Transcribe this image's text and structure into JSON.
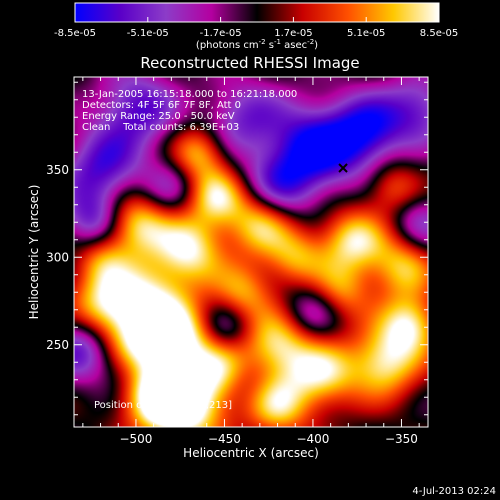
{
  "chart_data": {
    "type": "heatmap",
    "title": "Reconstructed RHESSI Image",
    "colorbar": {
      "ticks": [
        "-8.5e-05",
        "-5.1e-05",
        "-1.7e-05",
        "1.7e-05",
        "5.1e-05",
        "8.5e-05"
      ],
      "range": [
        -8.5e-05,
        8.5e-05
      ],
      "unit_label": "(photons cm",
      "unit_exp1": "-2",
      "unit_mid": " s",
      "unit_exp2": "-1",
      "unit_mid2": " asec",
      "unit_exp3": "-2",
      "unit_end": ")",
      "colormap": [
        "#0000ff",
        "#5a00c8",
        "#8c3cc8",
        "#b400a0",
        "#000000",
        "#c80000",
        "#ff5000",
        "#ffc800",
        "#ffffff"
      ]
    },
    "xlabel": "Heliocentric X (arcsec)",
    "ylabel": "Heliocentric Y (arcsec)",
    "xlim": [
      -535,
      -335
    ],
    "ylim": [
      203,
      403
    ],
    "xticks": [
      -500,
      -450,
      -400,
      -350
    ],
    "yticks": [
      250,
      300,
      350
    ],
    "annotations": {
      "time": "13-Jan-2005 16:15:18.000 to 16:21:18.000",
      "detectors": "Detectors: 4F 5F 6F 7F 8F, Att 0",
      "energy": "Energy Range: 25.0 - 50.0 keV",
      "clean": "Clean    Total counts: 6.39E+03",
      "position": "Position of Peak: [-471,213]"
    },
    "peak": {
      "x": -471,
      "y": 213
    },
    "minimum_marker": {
      "x": -383,
      "y": 351
    },
    "blobs": [
      {
        "x": -520,
        "y": 270,
        "v": 0.8,
        "s": 14
      },
      {
        "x": -495,
        "y": 277,
        "v": 0.8,
        "s": 16
      },
      {
        "x": -475,
        "y": 255,
        "v": 0.9,
        "s": 14
      },
      {
        "x": -500,
        "y": 248,
        "v": 0.7,
        "s": 13
      },
      {
        "x": -472,
        "y": 215,
        "v": 1.0,
        "s": 16
      },
      {
        "x": -490,
        "y": 222,
        "v": 0.85,
        "s": 14
      },
      {
        "x": -450,
        "y": 235,
        "v": 0.7,
        "s": 13
      },
      {
        "x": -420,
        "y": 250,
        "v": 0.8,
        "s": 14
      },
      {
        "x": -395,
        "y": 233,
        "v": 0.75,
        "s": 14
      },
      {
        "x": -360,
        "y": 240,
        "v": 0.85,
        "s": 14
      },
      {
        "x": -345,
        "y": 262,
        "v": 0.8,
        "s": 12
      },
      {
        "x": -350,
        "y": 295,
        "v": 0.7,
        "s": 13
      },
      {
        "x": -378,
        "y": 310,
        "v": 0.8,
        "s": 13
      },
      {
        "x": -385,
        "y": 280,
        "v": 0.6,
        "s": 12
      },
      {
        "x": -410,
        "y": 300,
        "v": 0.6,
        "s": 12
      },
      {
        "x": -430,
        "y": 320,
        "v": 0.75,
        "s": 13
      },
      {
        "x": -455,
        "y": 335,
        "v": 0.75,
        "s": 12
      },
      {
        "x": -470,
        "y": 305,
        "v": 0.85,
        "s": 14
      },
      {
        "x": -500,
        "y": 320,
        "v": 0.8,
        "s": 13
      },
      {
        "x": -440,
        "y": 280,
        "v": 0.6,
        "s": 12
      },
      {
        "x": -465,
        "y": 360,
        "v": 0.7,
        "s": 11
      },
      {
        "x": -355,
        "y": 340,
        "v": 0.5,
        "s": 11
      },
      {
        "x": -420,
        "y": 215,
        "v": 0.7,
        "s": 13
      },
      {
        "x": -520,
        "y": 300,
        "v": 0.5,
        "s": 11
      },
      {
        "x": -400,
        "y": 362,
        "v": -0.9,
        "s": 18
      },
      {
        "x": -370,
        "y": 372,
        "v": -0.8,
        "s": 15
      },
      {
        "x": -500,
        "y": 385,
        "v": -0.7,
        "s": 16
      },
      {
        "x": -520,
        "y": 350,
        "v": -0.7,
        "s": 16
      },
      {
        "x": -530,
        "y": 250,
        "v": -0.75,
        "s": 14
      },
      {
        "x": -525,
        "y": 320,
        "v": -0.6,
        "s": 12
      },
      {
        "x": -440,
        "y": 380,
        "v": -0.55,
        "s": 16
      },
      {
        "x": -420,
        "y": 340,
        "v": -0.55,
        "s": 14
      },
      {
        "x": -400,
        "y": 270,
        "v": -0.5,
        "s": 12
      },
      {
        "x": -450,
        "y": 260,
        "v": -0.45,
        "s": 11
      },
      {
        "x": -340,
        "y": 385,
        "v": -0.6,
        "s": 14
      },
      {
        "x": -340,
        "y": 320,
        "v": -0.45,
        "s": 12
      },
      {
        "x": -440,
        "y": 230,
        "v": -0.35,
        "s": 11
      },
      {
        "x": -480,
        "y": 340,
        "v": -0.4,
        "s": 12
      },
      {
        "x": -505,
        "y": 235,
        "v": -0.35,
        "s": 11
      }
    ]
  },
  "footer": {
    "timestamp": "4-Jul-2013 02:24"
  }
}
